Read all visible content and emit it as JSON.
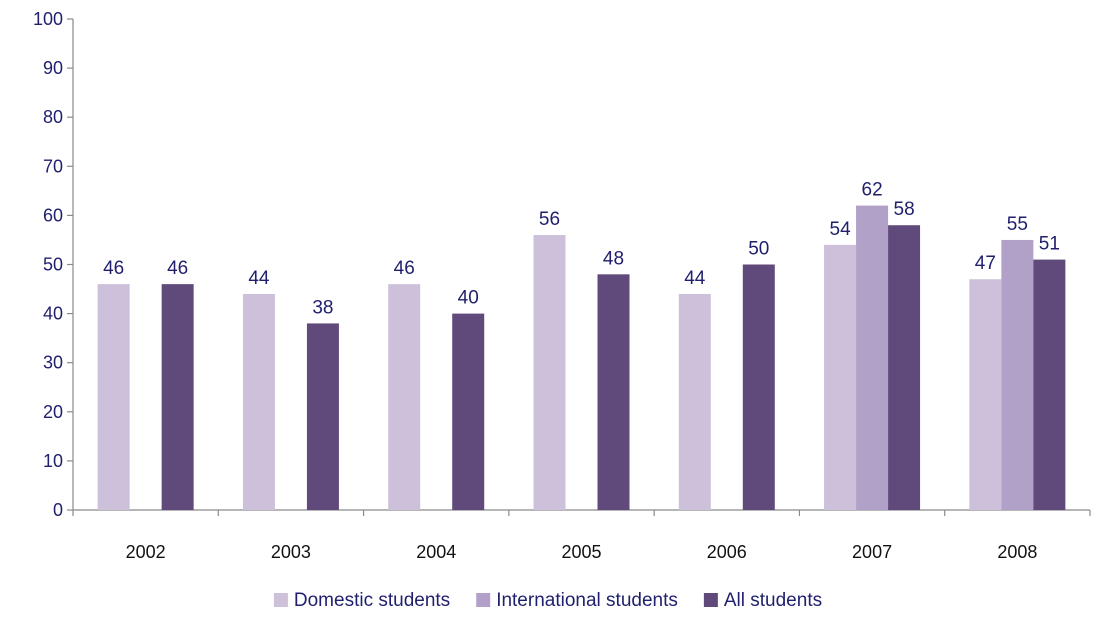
{
  "chart_data": {
    "type": "bar",
    "categories": [
      "2002",
      "2003",
      "2004",
      "2005",
      "2006",
      "2007",
      "2008"
    ],
    "series": [
      {
        "name": "Domestic students",
        "color": "#ccc0da",
        "values": [
          46,
          44,
          46,
          56,
          44,
          54,
          47
        ]
      },
      {
        "name": "International students",
        "color": "#b1a0c7",
        "values": [
          null,
          null,
          null,
          null,
          null,
          62,
          55
        ]
      },
      {
        "name": "All students",
        "color": "#604a7b",
        "values": [
          46,
          38,
          40,
          48,
          50,
          58,
          51
        ]
      }
    ],
    "ylim": [
      0,
      100
    ],
    "yticks": [
      0,
      10,
      20,
      30,
      40,
      50,
      60,
      70,
      80,
      90,
      100
    ],
    "grid": false,
    "legend_position": "bottom-center"
  }
}
